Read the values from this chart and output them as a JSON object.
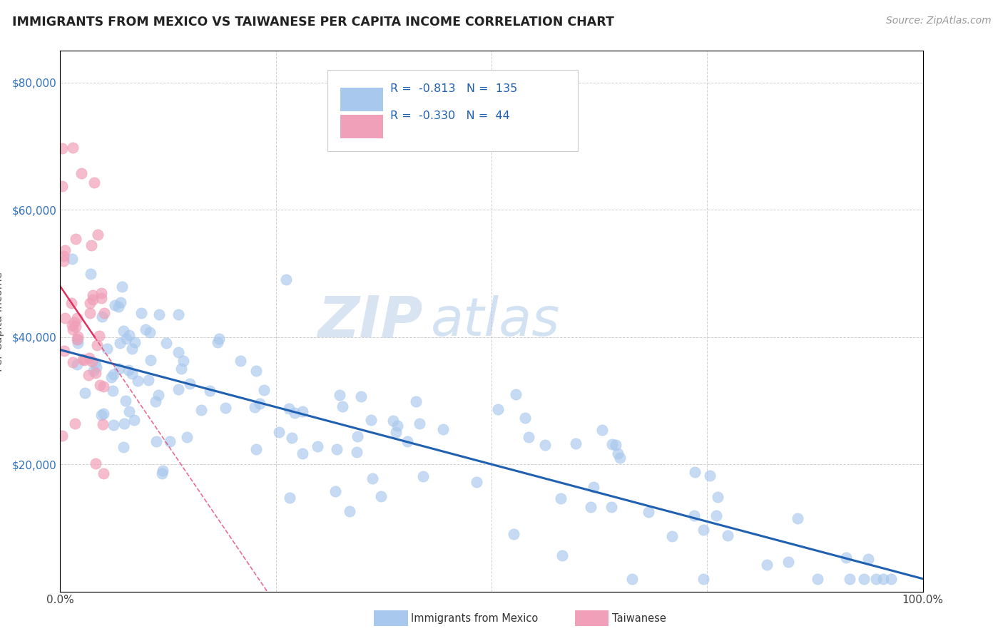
{
  "title": "IMMIGRANTS FROM MEXICO VS TAIWANESE PER CAPITA INCOME CORRELATION CHART",
  "source": "Source: ZipAtlas.com",
  "ylabel": "Per Capita Income",
  "xlim": [
    0,
    1.0
  ],
  "ylim": [
    0,
    85000
  ],
  "blue_R": "-0.813",
  "blue_N": "135",
  "pink_R": "-0.330",
  "pink_N": "44",
  "blue_scatter_color": "#a8c8ee",
  "pink_scatter_color": "#f0a0b8",
  "blue_line_color": "#2060b0",
  "pink_line_color": "#e03060",
  "watermark_zip": "ZIP",
  "watermark_atlas": "atlas",
  "background_color": "#ffffff",
  "grid_color": "#cccccc",
  "title_color": "#222222",
  "ylabel_color": "#555555",
  "ytick_color": "#3070c0",
  "xtick_color": "#444444"
}
